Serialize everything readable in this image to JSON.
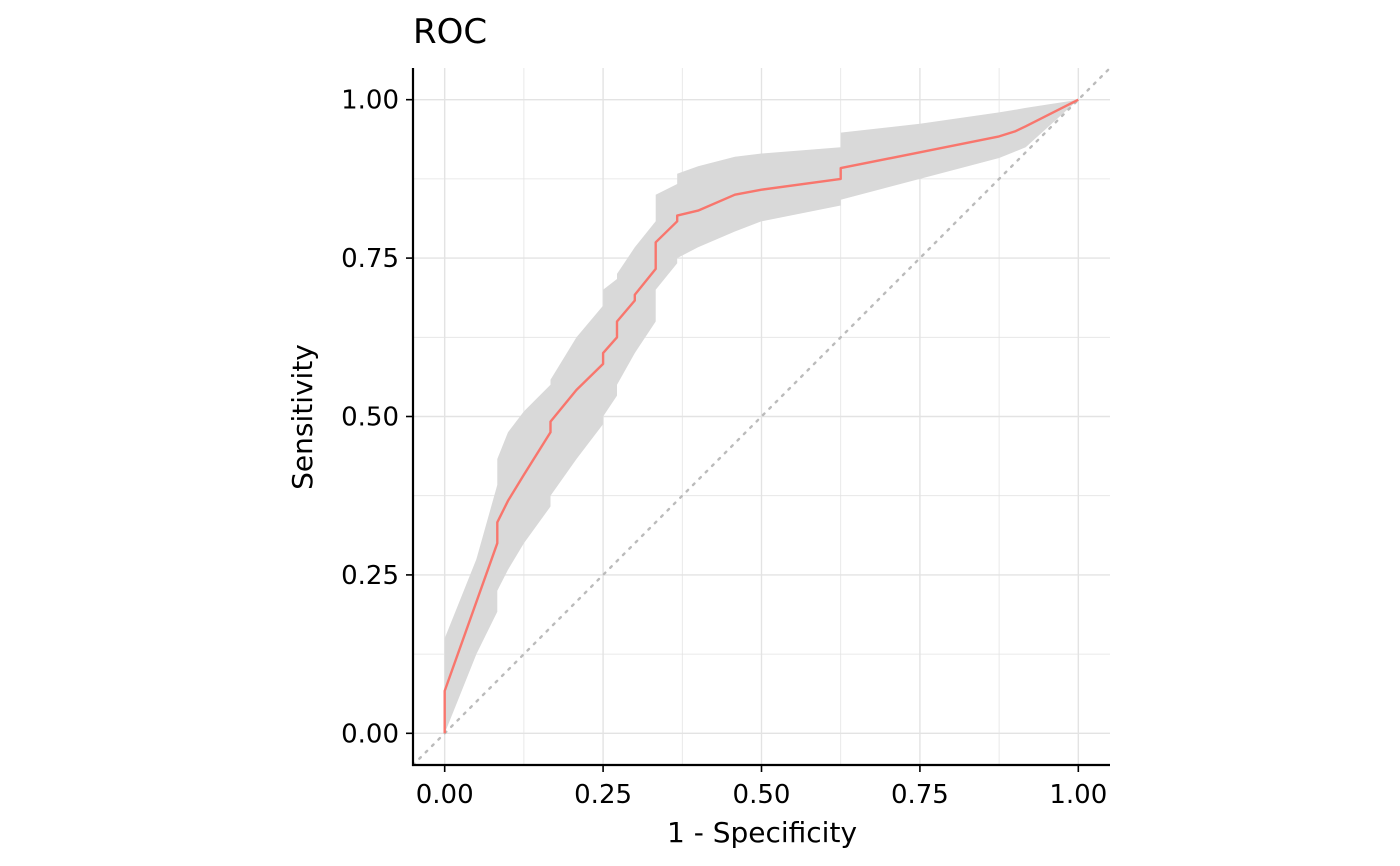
{
  "chart_data": {
    "type": "line",
    "title": "ROC",
    "xlabel": "1 - Specificity",
    "ylabel": "Sensitivity",
    "xlim": [
      -0.05,
      1.05
    ],
    "ylim": [
      -0.05,
      1.05
    ],
    "x_ticks": [
      "0.00",
      "0.25",
      "0.50",
      "0.75",
      "1.00"
    ],
    "y_ticks": [
      "0.00",
      "0.25",
      "0.50",
      "0.75",
      "1.00"
    ],
    "grid": true,
    "legend": "none",
    "colors": {
      "curve": "#F8766D",
      "band": "#D9D9D9",
      "reference": "#BBBBBB",
      "grid": "#E3E3E3",
      "axis": "#000000"
    },
    "series": [
      {
        "x": [
          0.0,
          0.0,
          0.083,
          0.083,
          0.1,
          0.125,
          0.167,
          0.167,
          0.208,
          0.25,
          0.25,
          0.272,
          0.272,
          0.3,
          0.3,
          0.333,
          0.333,
          0.367,
          0.367,
          0.4,
          0.458,
          0.5,
          0.625,
          0.625,
          0.75,
          0.875,
          0.9,
          0.917,
          1.0
        ],
        "y": [
          0.0,
          0.067,
          0.3,
          0.333,
          0.367,
          0.408,
          0.475,
          0.492,
          0.542,
          0.583,
          0.6,
          0.625,
          0.65,
          0.683,
          0.692,
          0.733,
          0.775,
          0.808,
          0.817,
          0.825,
          0.85,
          0.858,
          0.875,
          0.892,
          0.917,
          0.942,
          0.95,
          0.958,
          1.0
        ]
      }
    ],
    "confidence_band": {
      "x": [
        0.0,
        0.0,
        0.02,
        0.05,
        0.083,
        0.083,
        0.1,
        0.125,
        0.167,
        0.167,
        0.208,
        0.25,
        0.25,
        0.272,
        0.272,
        0.3,
        0.333,
        0.333,
        0.367,
        0.367,
        0.4,
        0.458,
        0.5,
        0.625,
        0.625,
        0.75,
        0.875,
        0.9,
        0.917,
        1.0
      ],
      "upper": [
        0.0,
        0.15,
        0.2,
        0.275,
        0.392,
        0.433,
        0.475,
        0.508,
        0.55,
        0.558,
        0.625,
        0.675,
        0.7,
        0.717,
        0.725,
        0.767,
        0.808,
        0.85,
        0.867,
        0.883,
        0.895,
        0.91,
        0.915,
        0.925,
        0.948,
        0.962,
        0.98,
        0.984,
        0.987,
        1.0
      ],
      "lower": [
        0.0,
        0.0,
        0.05,
        0.125,
        0.192,
        0.225,
        0.258,
        0.3,
        0.358,
        0.375,
        0.433,
        0.488,
        0.5,
        0.533,
        0.55,
        0.6,
        0.65,
        0.7,
        0.742,
        0.75,
        0.767,
        0.792,
        0.808,
        0.833,
        0.842,
        0.875,
        0.908,
        0.918,
        0.925,
        1.0
      ]
    },
    "reference_line": {
      "x": [
        -0.05,
        1.05
      ],
      "y": [
        -0.05,
        1.05
      ]
    }
  }
}
